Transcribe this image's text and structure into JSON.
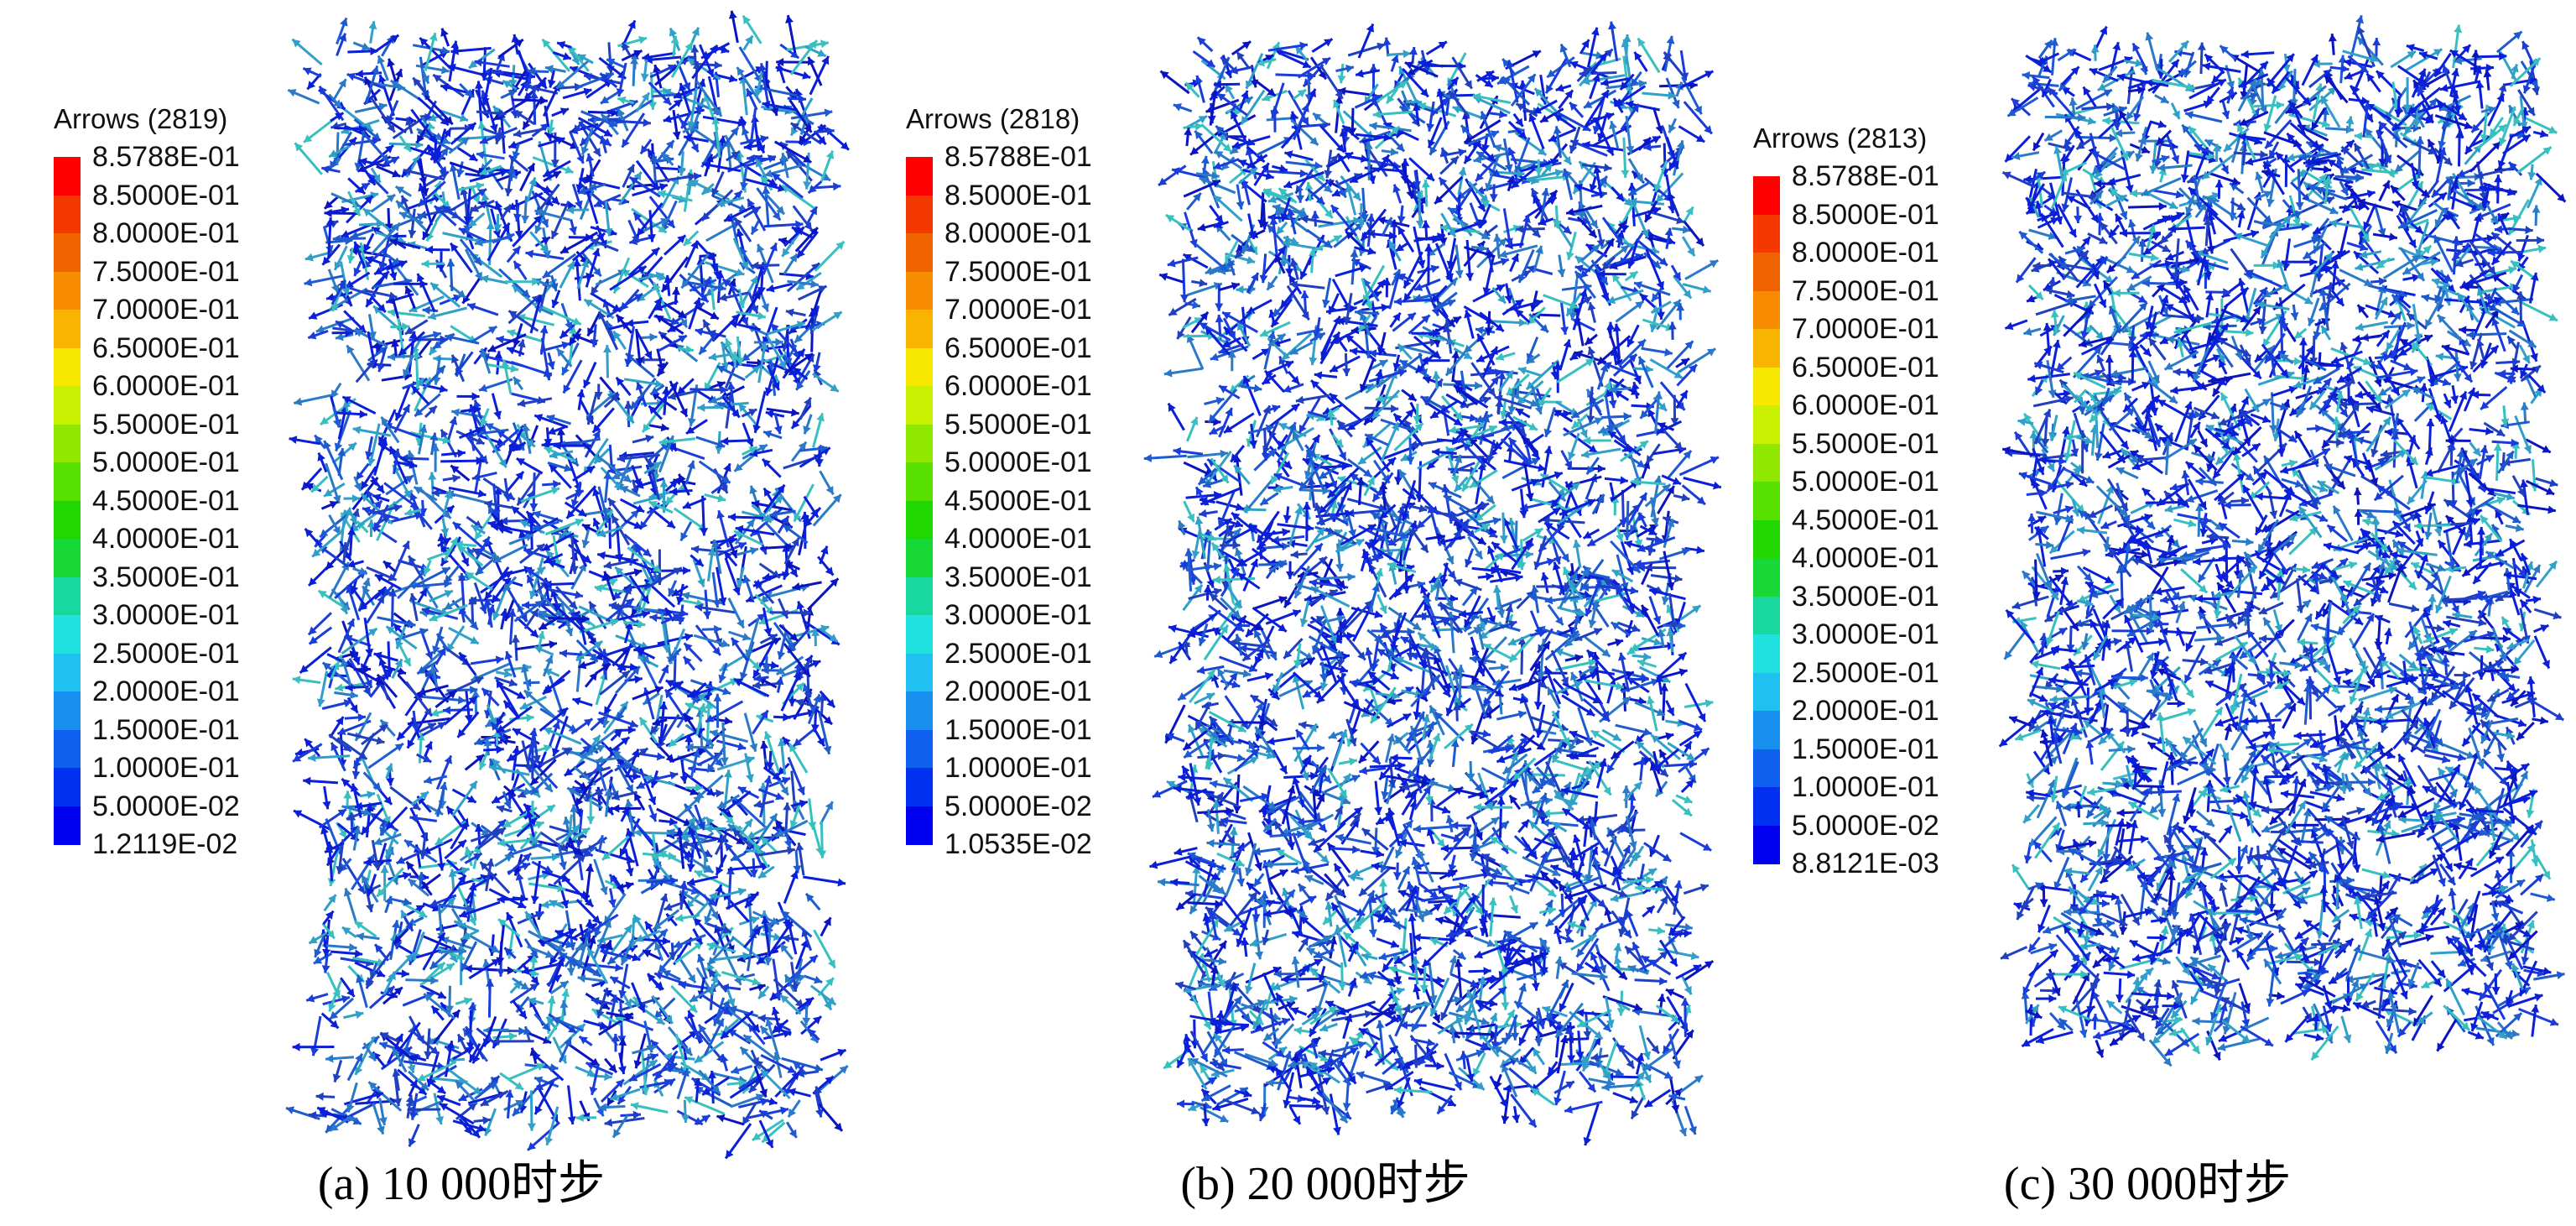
{
  "legend_colors": [
    "#ff0000",
    "#f43800",
    "#f06400",
    "#f88c00",
    "#f8b400",
    "#f8e800",
    "#c8f000",
    "#90e800",
    "#58e000",
    "#20d800",
    "#18d838",
    "#18d8a0",
    "#20e0e0",
    "#20c0f0",
    "#1890f0",
    "#1060f0",
    "#0030f0",
    "#0000f0"
  ],
  "arrow_colors": [
    "#0b1fd8",
    "#1a3cd8",
    "#1e5ad0",
    "#2a7ac8",
    "#30a0c8",
    "#38c0c0",
    "#2040c0",
    "#0a14c0"
  ],
  "panels": [
    {
      "legend_title": "Arrows (2819)",
      "legend_labels": [
        "8.5788E-01",
        "8.5000E-01",
        "8.0000E-01",
        "7.5000E-01",
        "7.0000E-01",
        "6.5000E-01",
        "6.0000E-01",
        "5.5000E-01",
        "5.0000E-01",
        "4.5000E-01",
        "4.0000E-01",
        "3.5000E-01",
        "3.0000E-01",
        "2.5000E-01",
        "2.0000E-01",
        "1.5000E-01",
        "1.0000E-01",
        "5.0000E-02",
        "1.2119E-02"
      ],
      "caption": "(a) 10 000时步"
    },
    {
      "legend_title": "Arrows (2818)",
      "legend_labels": [
        "8.5788E-01",
        "8.5000E-01",
        "8.0000E-01",
        "7.5000E-01",
        "7.0000E-01",
        "6.5000E-01",
        "6.0000E-01",
        "5.5000E-01",
        "5.0000E-01",
        "4.5000E-01",
        "4.0000E-01",
        "3.5000E-01",
        "3.0000E-01",
        "2.5000E-01",
        "2.0000E-01",
        "1.5000E-01",
        "1.0000E-01",
        "5.0000E-02",
        "1.0535E-02"
      ],
      "caption": "(b) 20 000时步"
    },
    {
      "legend_title": "Arrows (2813)",
      "legend_labels": [
        "8.5788E-01",
        "8.5000E-01",
        "8.0000E-01",
        "7.5000E-01",
        "7.0000E-01",
        "6.5000E-01",
        "6.0000E-01",
        "5.5000E-01",
        "5.0000E-01",
        "4.5000E-01",
        "4.0000E-01",
        "3.5000E-01",
        "3.0000E-01",
        "2.5000E-01",
        "2.0000E-01",
        "1.5000E-01",
        "1.0000E-01",
        "5.0000E-02",
        "8.8121E-03"
      ],
      "caption": "(c) 30 000时步"
    }
  ]
}
